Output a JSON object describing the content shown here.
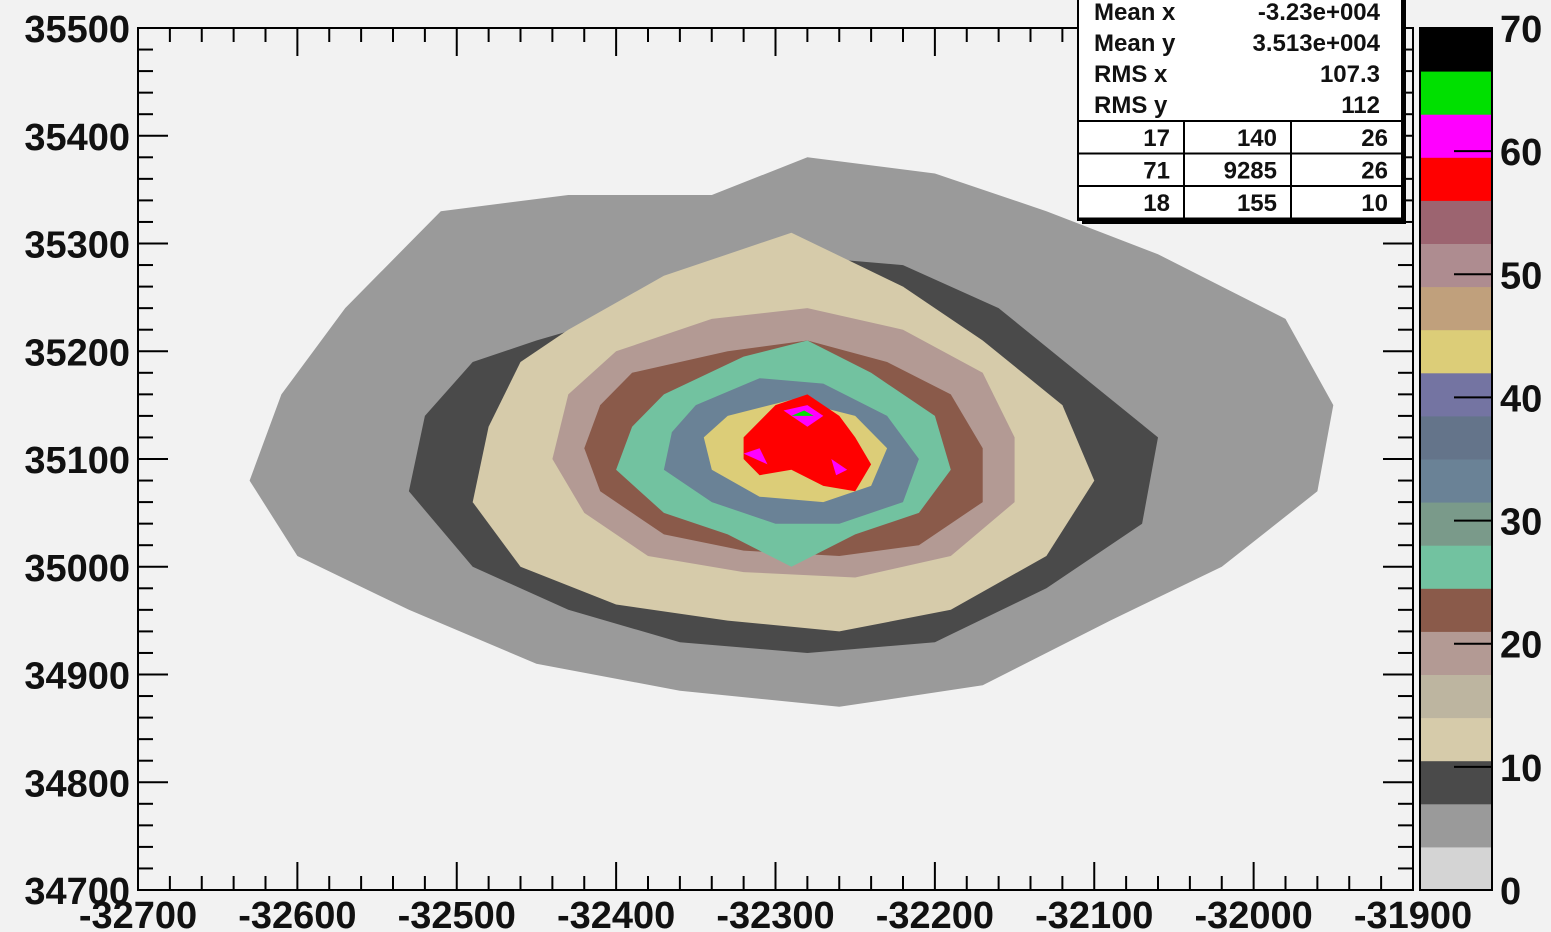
{
  "chart_data": {
    "type": "heatmap",
    "title": "",
    "xlabel": "",
    "ylabel": "",
    "xlim": [
      -32700,
      -31900
    ],
    "ylim": [
      34700,
      35500
    ],
    "x_ticks": [
      "-32700",
      "-32600",
      "-32500",
      "-32400",
      "-32300",
      "-32200",
      "-32100",
      "-32000",
      "-31900"
    ],
    "y_ticks": [
      "34700",
      "34800",
      "34900",
      "35000",
      "35100",
      "35200",
      "35300",
      "35400",
      "35500"
    ],
    "grid": false,
    "color_scale": {
      "range": [
        0,
        70
      ],
      "ticks": [
        "0",
        "10",
        "20",
        "30",
        "40",
        "50",
        "60",
        "70"
      ],
      "bands": [
        "#d4d4d4",
        "#9a9a9a",
        "#4a4a4a",
        "#d6cbaa",
        "#bdb5a0",
        "#b39a94",
        "#8a5a4a",
        "#72c2a0",
        "#7a9a8a",
        "#6a8296",
        "#64748a",
        "#7474a2",
        "#dccd78",
        "#c0a07c",
        "#ae8c90",
        "#9c6470",
        "#ff0000",
        "#ff00ff",
        "#00e000",
        "#000000"
      ]
    },
    "contours": [
      {
        "level": 1,
        "points": [
          [
            -32510,
            35330
          ],
          [
            -32430,
            35345
          ],
          [
            -32340,
            35345
          ],
          [
            -32280,
            35380
          ],
          [
            -32200,
            35365
          ],
          [
            -32130,
            35330
          ],
          [
            -32060,
            35290
          ],
          [
            -31980,
            35230
          ],
          [
            -31950,
            35150
          ],
          [
            -31960,
            35070
          ],
          [
            -32020,
            35000
          ],
          [
            -32090,
            34950
          ],
          [
            -32170,
            34890
          ],
          [
            -32260,
            34870
          ],
          [
            -32360,
            34885
          ],
          [
            -32450,
            34910
          ],
          [
            -32530,
            34960
          ],
          [
            -32600,
            35010
          ],
          [
            -32630,
            35080
          ],
          [
            -32610,
            35160
          ],
          [
            -32570,
            35240
          ]
        ]
      },
      {
        "level": 2,
        "points": [
          [
            -32450,
            35210
          ],
          [
            -32380,
            35240
          ],
          [
            -32300,
            35290
          ],
          [
            -32220,
            35280
          ],
          [
            -32160,
            35240
          ],
          [
            -32110,
            35180
          ],
          [
            -32060,
            35120
          ],
          [
            -32070,
            35040
          ],
          [
            -32130,
            34980
          ],
          [
            -32200,
            34930
          ],
          [
            -32280,
            34920
          ],
          [
            -32360,
            34930
          ],
          [
            -32430,
            34960
          ],
          [
            -32490,
            35000
          ],
          [
            -32530,
            35070
          ],
          [
            -32520,
            35140
          ],
          [
            -32490,
            35190
          ]
        ]
      },
      {
        "level": 3,
        "points": [
          [
            -32430,
            35220
          ],
          [
            -32370,
            35270
          ],
          [
            -32290,
            35310
          ],
          [
            -32220,
            35260
          ],
          [
            -32170,
            35210
          ],
          [
            -32120,
            35150
          ],
          [
            -32100,
            35080
          ],
          [
            -32130,
            35010
          ],
          [
            -32190,
            34960
          ],
          [
            -32260,
            34940
          ],
          [
            -32330,
            34950
          ],
          [
            -32400,
            34965
          ],
          [
            -32460,
            35000
          ],
          [
            -32490,
            35060
          ],
          [
            -32480,
            35130
          ],
          [
            -32460,
            35190
          ]
        ]
      },
      {
        "level": 5,
        "points": [
          [
            -32400,
            35200
          ],
          [
            -32340,
            35230
          ],
          [
            -32280,
            35240
          ],
          [
            -32220,
            35220
          ],
          [
            -32170,
            35180
          ],
          [
            -32150,
            35120
          ],
          [
            -32150,
            35060
          ],
          [
            -32190,
            35010
          ],
          [
            -32250,
            34990
          ],
          [
            -32320,
            34995
          ],
          [
            -32380,
            35010
          ],
          [
            -32420,
            35050
          ],
          [
            -32440,
            35100
          ],
          [
            -32430,
            35160
          ]
        ]
      },
      {
        "level": 6,
        "points": [
          [
            -32390,
            35180
          ],
          [
            -32330,
            35200
          ],
          [
            -32280,
            35210
          ],
          [
            -32230,
            35190
          ],
          [
            -32190,
            35160
          ],
          [
            -32170,
            35110
          ],
          [
            -32170,
            35060
          ],
          [
            -32210,
            35020
          ],
          [
            -32260,
            35010
          ],
          [
            -32320,
            35015
          ],
          [
            -32370,
            35030
          ],
          [
            -32410,
            35070
          ],
          [
            -32420,
            35110
          ],
          [
            -32410,
            35150
          ]
        ]
      },
      {
        "level": 7,
        "points": [
          [
            -32370,
            35160
          ],
          [
            -32320,
            35195
          ],
          [
            -32280,
            35210
          ],
          [
            -32240,
            35180
          ],
          [
            -32200,
            35140
          ],
          [
            -32190,
            35090
          ],
          [
            -32210,
            35050
          ],
          [
            -32250,
            35030
          ],
          [
            -32290,
            35000
          ],
          [
            -32330,
            35030
          ],
          [
            -32370,
            35050
          ],
          [
            -32400,
            35090
          ],
          [
            -32390,
            35130
          ]
        ]
      },
      {
        "level": 9,
        "points": [
          [
            -32350,
            35150
          ],
          [
            -32310,
            35175
          ],
          [
            -32270,
            35170
          ],
          [
            -32230,
            35140
          ],
          [
            -32210,
            35100
          ],
          [
            -32220,
            35060
          ],
          [
            -32260,
            35040
          ],
          [
            -32300,
            35040
          ],
          [
            -32340,
            35060
          ],
          [
            -32370,
            35090
          ],
          [
            -32365,
            35125
          ]
        ]
      },
      {
        "level": 12,
        "points": [
          [
            -32330,
            35140
          ],
          [
            -32290,
            35155
          ],
          [
            -32250,
            35140
          ],
          [
            -32230,
            35110
          ],
          [
            -32240,
            35075
          ],
          [
            -32270,
            35060
          ],
          [
            -32310,
            35065
          ],
          [
            -32340,
            35090
          ],
          [
            -32345,
            35120
          ]
        ]
      },
      {
        "level": 16,
        "points": [
          [
            -32300,
            35150
          ],
          [
            -32280,
            35160
          ],
          [
            -32260,
            35140
          ],
          [
            -32250,
            35120
          ],
          [
            -32240,
            35095
          ],
          [
            -32250,
            35070
          ],
          [
            -32270,
            35075
          ],
          [
            -32290,
            35090
          ],
          [
            -32310,
            35085
          ],
          [
            -32320,
            35100
          ],
          [
            -32320,
            35120
          ]
        ]
      },
      {
        "level": 17,
        "points": [
          [
            -32295,
            35145
          ],
          [
            -32280,
            35150
          ],
          [
            -32270,
            35140
          ],
          [
            -32280,
            35130
          ]
        ]
      },
      {
        "level": 18,
        "points": [
          [
            -32290,
            35140
          ],
          [
            -32282,
            35145
          ],
          [
            -32276,
            35140
          ]
        ]
      },
      {
        "level": 17,
        "points": [
          [
            -32320,
            35105
          ],
          [
            -32310,
            35110
          ],
          [
            -32305,
            35095
          ]
        ]
      },
      {
        "level": 17,
        "points": [
          [
            -32265,
            35100
          ],
          [
            -32255,
            35090
          ],
          [
            -32262,
            35085
          ]
        ]
      }
    ],
    "stats_box": {
      "rows": [
        {
          "label": "Mean x",
          "value": "-3.23e+004"
        },
        {
          "label": "Mean y",
          "value": "3.513e+004"
        },
        {
          "label": "RMS x",
          "value": "107.3"
        },
        {
          "label": "RMS y",
          "value": "112"
        }
      ],
      "grid": [
        [
          "17",
          "140",
          "26"
        ],
        [
          "71",
          "9285",
          "26"
        ],
        [
          "18",
          "155",
          "10"
        ]
      ]
    }
  }
}
